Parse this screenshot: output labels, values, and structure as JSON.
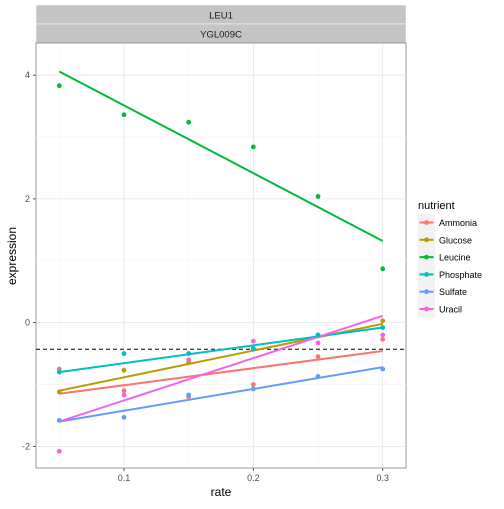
{
  "chart_data": {
    "type": "scatter",
    "facet_labels": [
      "LEU1",
      "YGL009C"
    ],
    "xlabel": "rate",
    "ylabel": "expression",
    "xlim": [
      0.032,
      0.318
    ],
    "ylim": [
      -2.35,
      4.52
    ],
    "x_ticks": [
      0.1,
      0.2,
      0.3
    ],
    "x_tick_labels": [
      "0.1",
      "0.2",
      "0.3"
    ],
    "y_ticks": [
      -2,
      0,
      2,
      4
    ],
    "y_tick_labels": [
      "-2",
      "0",
      "2",
      "4"
    ],
    "grid": true,
    "hline": {
      "y": -0.43,
      "style": "dashed",
      "color": "#000000"
    },
    "legend": {
      "title": "nutrient",
      "position": "right"
    },
    "x": [
      0.05,
      0.1,
      0.15,
      0.2,
      0.25,
      0.3
    ],
    "series": [
      {
        "name": "Ammonia",
        "color": "#F8766D",
        "points": [
          -0.75,
          -1.1,
          -1.2,
          -1.0,
          -0.55,
          -0.27
        ],
        "fit": [
          -1.15,
          -0.46
        ]
      },
      {
        "name": "Glucose",
        "color": "#B79F00",
        "points": [
          -1.12,
          -0.77,
          -0.65,
          -0.42,
          -0.2,
          0.03
        ],
        "fit": [
          -1.1,
          -0.02
        ]
      },
      {
        "name": "Leucine",
        "color": "#00BA38",
        "points": [
          3.83,
          3.36,
          3.24,
          2.84,
          2.04,
          0.87
        ],
        "fit": [
          4.06,
          1.32
        ]
      },
      {
        "name": "Phosphate",
        "color": "#00BFC4",
        "points": [
          -0.8,
          -0.5,
          -0.5,
          -0.42,
          -0.2,
          -0.08
        ],
        "fit": [
          -0.8,
          -0.08
        ]
      },
      {
        "name": "Sulfate",
        "color": "#619CFF",
        "points": [
          -1.58,
          -1.53,
          -1.17,
          -1.07,
          -0.87,
          -0.75
        ],
        "fit": [
          -1.6,
          -0.72
        ]
      },
      {
        "name": "Uracil",
        "color": "#F564E3",
        "points": [
          -2.08,
          -1.17,
          -0.6,
          -0.3,
          -0.33,
          -0.2
        ],
        "fit": [
          -1.6,
          0.11
        ]
      }
    ]
  }
}
